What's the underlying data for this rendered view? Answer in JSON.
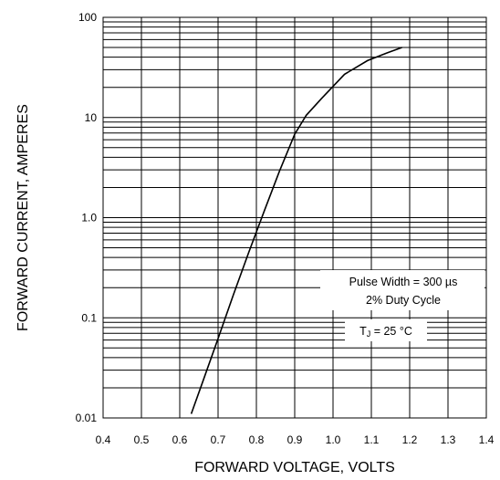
{
  "chart_data": {
    "type": "line",
    "title": "",
    "xlabel": "FORWARD VOLTAGE, VOLTS",
    "ylabel": "FORWARD CURRENT, AMPERES",
    "xlim": [
      0.4,
      1.4
    ],
    "ylim": [
      0.01,
      100
    ],
    "y_scale": "log",
    "grid": true,
    "x_tick_labels": [
      "0.4",
      "0.5",
      "0.6",
      "0.7",
      "0.8",
      "0.9",
      "1.0",
      "1.1",
      "1.2",
      "1.3",
      "1.4"
    ],
    "y_tick_labels": [
      "0.01",
      "0.1",
      "1.0",
      "10",
      "100"
    ],
    "series": [
      {
        "x": [
          0.63,
          0.66,
          0.7,
          0.74,
          0.78,
          0.82,
          0.86,
          0.9,
          0.93,
          0.97,
          1.03,
          1.09,
          1.14,
          1.18
        ],
        "y": [
          0.011,
          0.023,
          0.062,
          0.17,
          0.45,
          1.15,
          2.9,
          6.8,
          10.5,
          15.5,
          27,
          37,
          44,
          50
        ]
      }
    ],
    "annotations": {
      "pulse": "Pulse Width = 300  µs",
      "duty": "2% Duty Cycle",
      "tj_main": "T",
      "tj_sub": "J",
      "tj_value": " = 25 °C"
    },
    "line_color": "#000000",
    "grid_color": "#000000"
  }
}
